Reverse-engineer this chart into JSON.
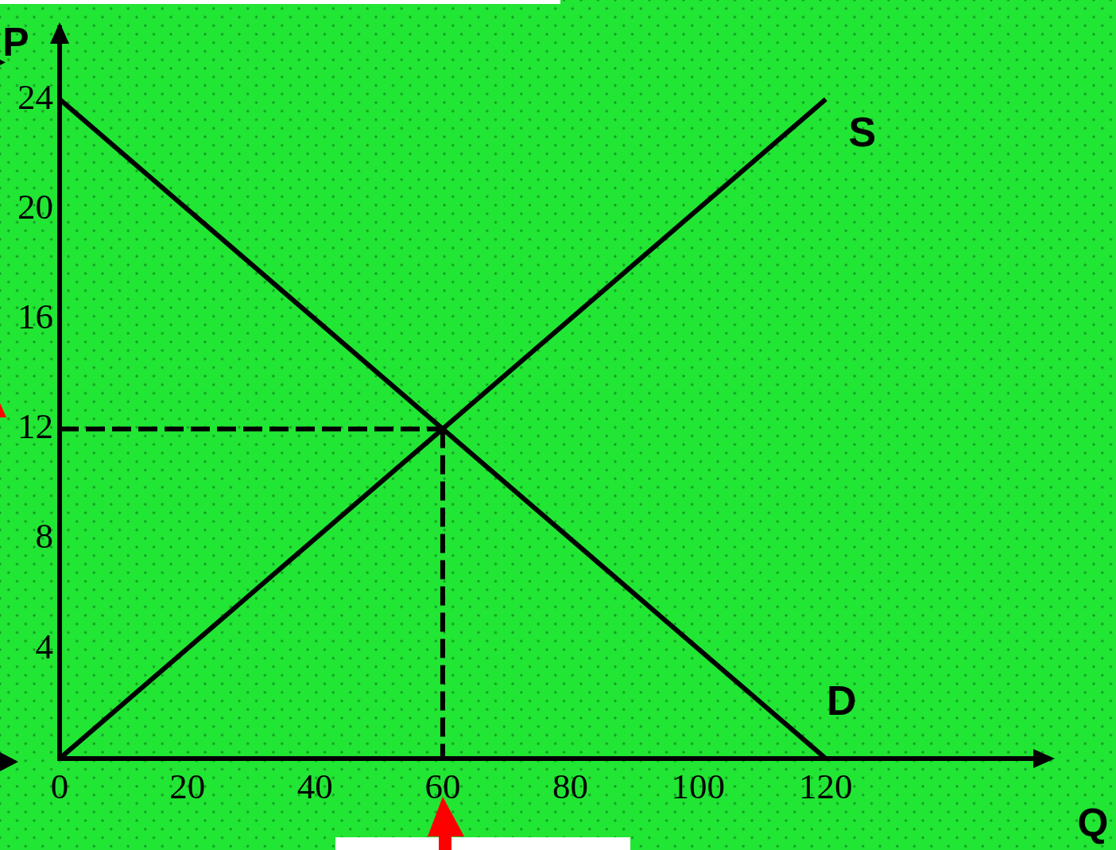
{
  "chart_data": {
    "type": "line",
    "xlabel": "Q",
    "ylabel": "P",
    "xlim": [
      0,
      155
    ],
    "ylim": [
      0,
      26.6
    ],
    "xticks": [
      0,
      20,
      40,
      60,
      80,
      100,
      120
    ],
    "yticks": [
      4,
      8,
      12,
      16,
      20,
      24
    ],
    "marker": "none",
    "line_style": "solid",
    "series": [
      {
        "name": "S",
        "color": "#000000",
        "x": [
          0,
          120
        ],
        "values": [
          0,
          24
        ]
      },
      {
        "name": "D",
        "color": "#000000",
        "x": [
          0,
          120
        ],
        "values": [
          24,
          0
        ]
      },
      {
        "color": "#000000",
        "x": [
          0,
          60
        ],
        "values": [
          12,
          12
        ],
        "line_style": "dashed"
      },
      {
        "color": "#000000",
        "x": [
          60,
          60
        ],
        "values": [
          12,
          0
        ],
        "line_style": "dashed"
      }
    ]
  }
}
